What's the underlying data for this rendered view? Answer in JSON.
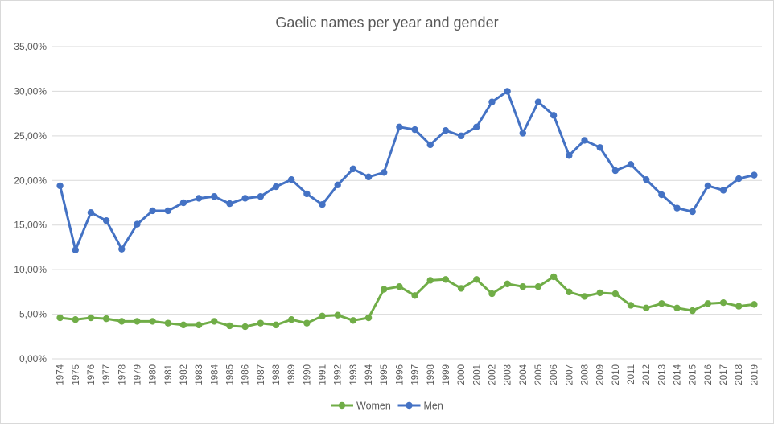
{
  "chart_data": {
    "type": "line",
    "title": "Gaelic names per year and gender",
    "xlabel": "",
    "ylabel": "",
    "ylim": [
      0,
      35
    ],
    "y_ticks": [
      "0,00%",
      "5,00%",
      "10,00%",
      "15,00%",
      "20,00%",
      "25,00%",
      "30,00%",
      "35,00%"
    ],
    "y_tick_values": [
      0,
      5,
      10,
      15,
      20,
      25,
      30,
      35
    ],
    "grid": "horizontal",
    "legend_position": "bottom",
    "categories": [
      "1974",
      "1975",
      "1976",
      "1977",
      "1978",
      "1979",
      "1980",
      "1981",
      "1982",
      "1983",
      "1984",
      "1985",
      "1986",
      "1987",
      "1988",
      "1989",
      "1990",
      "1991",
      "1992",
      "1993",
      "1994",
      "1995",
      "1996",
      "1997",
      "1998",
      "1999",
      "2000",
      "2001",
      "2002",
      "2003",
      "2004",
      "2005",
      "2006",
      "2007",
      "2008",
      "2009",
      "2010",
      "2011",
      "2012",
      "2013",
      "2014",
      "2015",
      "2016",
      "2017",
      "2018",
      "2019"
    ],
    "series": [
      {
        "name": "Women",
        "color": "#70ad47",
        "values": [
          4.6,
          4.4,
          4.6,
          4.5,
          4.2,
          4.2,
          4.2,
          4.0,
          3.8,
          3.8,
          4.2,
          3.7,
          3.6,
          4.0,
          3.8,
          4.4,
          4.0,
          4.8,
          4.9,
          4.3,
          4.6,
          7.8,
          8.1,
          7.1,
          8.8,
          8.9,
          7.9,
          8.9,
          7.3,
          8.4,
          8.1,
          8.1,
          9.2,
          7.5,
          7.0,
          7.4,
          7.3,
          6.0,
          5.7,
          6.2,
          5.7,
          5.4,
          6.2,
          6.3,
          5.9,
          6.1
        ]
      },
      {
        "name": "Men",
        "color": "#4472c4",
        "values": [
          19.4,
          12.2,
          16.4,
          15.5,
          12.3,
          15.1,
          16.6,
          16.6,
          17.5,
          18.0,
          18.2,
          17.4,
          18.0,
          18.2,
          19.3,
          20.1,
          18.5,
          17.3,
          19.5,
          21.3,
          20.4,
          20.9,
          26.0,
          25.7,
          24.0,
          25.6,
          25.0,
          26.0,
          28.8,
          30.0,
          25.3,
          28.8,
          27.3,
          22.8,
          24.5,
          23.7,
          21.1,
          21.8,
          20.1,
          18.4,
          16.9,
          16.5,
          19.4,
          18.9,
          20.2,
          20.6
        ]
      }
    ]
  }
}
